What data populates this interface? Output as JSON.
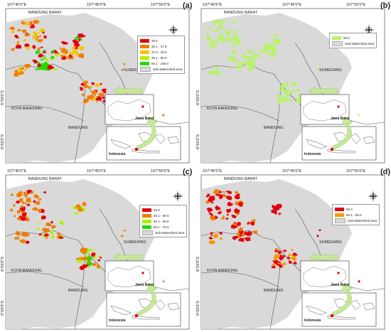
{
  "coords": {
    "top_left": "107°40'0\"E",
    "top_mid": "107°45'0\"E",
    "top_right": "107°50'0\"E",
    "left_lat": "6°55'0\"S",
    "left_lat2": "6°55'0\"S"
  },
  "places": {
    "bandung_barat": "BANDUNG BARAT",
    "sumedang": "SUMEDANG",
    "kota_bandung": "KOTA BANDUNG",
    "bandung": "BANDUNG",
    "jawa_barat": "Jawa Barat",
    "indonesia": "Indonesia"
  },
  "panels": [
    {
      "label": "(a)",
      "legend": [
        {
          "text": "30.0",
          "color": "#e4000e"
        },
        {
          "text": "30.1 - 37.5",
          "color": "#f07f00"
        },
        {
          "text": "37.6 - 45.0",
          "color": "#f5c400"
        },
        {
          "text": "45.1 - 60.0",
          "color": "#b4f000"
        },
        {
          "text": "60.1 - 150.0",
          "color": "#22dd00"
        },
        {
          "text": "Sub-Watershed area",
          "color": "#d9d9d9"
        }
      ]
    },
    {
      "label": "(b)",
      "legend": [
        {
          "text": "90.0",
          "color": "#b8f26a"
        },
        {
          "text": "Sub-Watershed area",
          "color": "#d9d9d9"
        }
      ]
    },
    {
      "label": "(c)",
      "legend": [
        {
          "text": "40.0",
          "color": "#e4000e"
        },
        {
          "text": "40.1 - 50.0",
          "color": "#f07f00"
        },
        {
          "text": "50.1 - 60.0",
          "color": "#b4f000"
        },
        {
          "text": "60.1 - 70.0",
          "color": "#22dd00"
        },
        {
          "text": "Sub-Watershed area",
          "color": "#d9d9d9"
        }
      ]
    },
    {
      "label": "(d)",
      "legend": [
        {
          "text": "60.0",
          "color": "#e4000e"
        },
        {
          "text": "60.1 - 80.0",
          "color": "#f59a00"
        },
        {
          "text": "Sub-Watershed area",
          "color": "#d9d9d9"
        }
      ]
    }
  ],
  "colors": {
    "watershed": "#d9d9d9",
    "boundary": "#555555",
    "arrow": "#c6e89a",
    "red": "#e4000e",
    "orange": "#f07f00",
    "yellow": "#f5c400",
    "lime": "#b4f000",
    "green": "#22dd00",
    "lightgreen": "#b8f26a",
    "d_orange": "#f59a00"
  }
}
